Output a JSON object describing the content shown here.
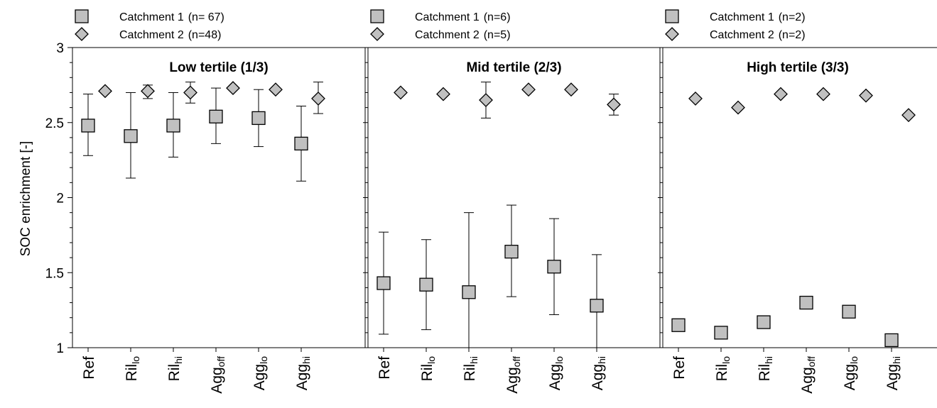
{
  "chart_data": {
    "type": "scatter",
    "ylabel": "SOC enrichment [-]",
    "ylim": [
      1,
      3
    ],
    "yticks": [
      "1",
      "1.5",
      "2",
      "2.5",
      "3"
    ],
    "ytick_values": [
      1,
      1.5,
      2,
      2.5,
      3
    ],
    "minor_tick_step": 0.1,
    "categories": [
      {
        "base": "Ref",
        "sub": ""
      },
      {
        "base": "Ril",
        "sub": "lo"
      },
      {
        "base": "Ril",
        "sub": "hi"
      },
      {
        "base": "Agg",
        "sub": "off"
      },
      {
        "base": "Agg",
        "sub": "lo"
      },
      {
        "base": "Agg",
        "sub": "hi"
      }
    ],
    "panels": [
      {
        "title": "Low tertile (1/3)",
        "series": [
          {
            "name": "Catchment 1",
            "legend_label": "Catchment  1",
            "legend_n": "(n= 67)",
            "marker": "square",
            "values": [
              2.48,
              2.41,
              2.48,
              2.54,
              2.53,
              2.36
            ],
            "err_low": [
              2.28,
              2.13,
              2.27,
              2.36,
              2.34,
              2.11
            ],
            "err_high": [
              2.69,
              2.7,
              2.7,
              2.73,
              2.72,
              2.61
            ]
          },
          {
            "name": "Catchment 2",
            "legend_label": "Catchment  2",
            "legend_n": "(n=48)",
            "marker": "diamond",
            "values": [
              2.71,
              2.71,
              2.7,
              2.73,
              2.72,
              2.66
            ],
            "err_low": [
              null,
              2.66,
              2.63,
              null,
              null,
              2.56
            ],
            "err_high": [
              null,
              2.75,
              2.77,
              null,
              null,
              2.77
            ]
          }
        ]
      },
      {
        "title": "Mid tertile (2/3)",
        "series": [
          {
            "name": "Catchment 1",
            "legend_label": "Catchment  1",
            "legend_n": "(n=6)",
            "marker": "square",
            "values": [
              1.43,
              1.42,
              1.37,
              1.64,
              1.54,
              1.28
            ],
            "err_low": [
              1.09,
              1.12,
              1.0,
              1.34,
              1.22,
              1.0
            ],
            "err_high": [
              1.77,
              1.72,
              1.9,
              1.95,
              1.86,
              1.62
            ]
          },
          {
            "name": "Catchment 2",
            "legend_label": "Catchment  2",
            "legend_n": "(n=5)",
            "marker": "diamond",
            "values": [
              2.7,
              2.69,
              2.65,
              2.72,
              2.72,
              2.62
            ],
            "err_low": [
              null,
              null,
              2.53,
              null,
              null,
              2.55
            ],
            "err_high": [
              null,
              null,
              2.77,
              null,
              null,
              2.69
            ]
          }
        ]
      },
      {
        "title": "High tertile (3/3)",
        "series": [
          {
            "name": "Catchment 1",
            "legend_label": "Catchment  1",
            "legend_n": "(n=2)",
            "marker": "square",
            "values": [
              1.15,
              1.1,
              1.17,
              1.3,
              1.24,
              1.05
            ],
            "err_low": [
              null,
              null,
              null,
              null,
              null,
              null
            ],
            "err_high": [
              null,
              null,
              null,
              null,
              null,
              null
            ]
          },
          {
            "name": "Catchment 2",
            "legend_label": "Catchment  2",
            "legend_n": "(n=2)",
            "marker": "diamond",
            "values": [
              2.66,
              2.6,
              2.69,
              2.69,
              2.68,
              2.55
            ],
            "err_low": [
              null,
              null,
              null,
              null,
              null,
              null
            ],
            "err_high": [
              null,
              null,
              null,
              null,
              null,
              null
            ]
          }
        ]
      }
    ],
    "colors": {
      "marker_fill": "#c0c0c0",
      "marker_stroke": "#000000",
      "axis": "#000000"
    }
  }
}
